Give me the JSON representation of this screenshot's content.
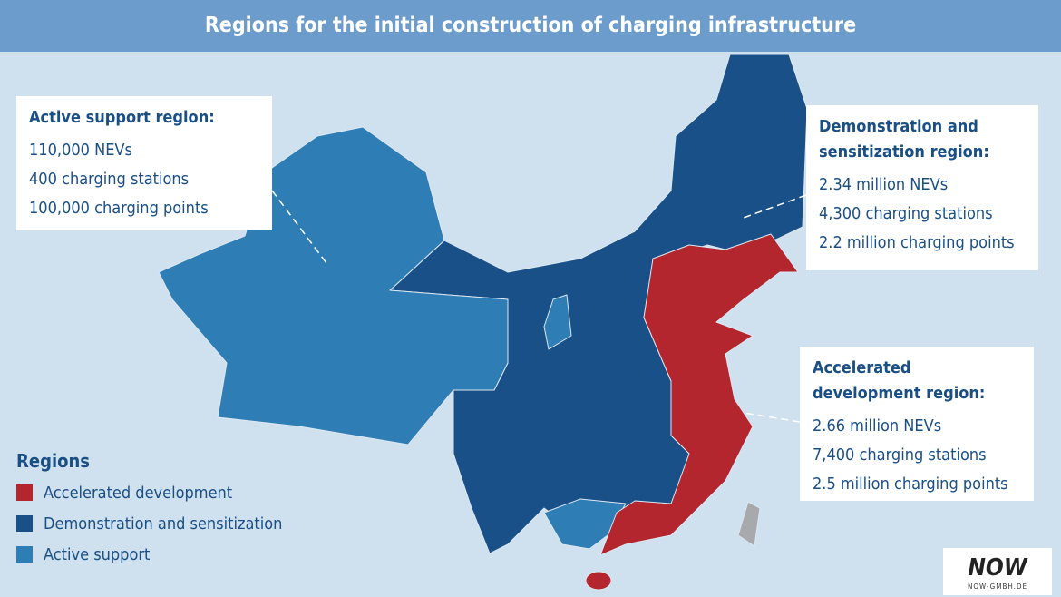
{
  "header": {
    "title": "Regions for the initial construction of charging infrastructure"
  },
  "callouts": [
    {
      "title": "Active support region:",
      "lines": [
        "110,000 NEVs",
        "400 charging stations",
        "100,000 charging points"
      ]
    },
    {
      "title": "Demonstration and sensitization region:",
      "lines": [
        "2.34 million NEVs",
        "4,300 charging stations",
        "2.2 million charging points"
      ]
    },
    {
      "title": "Accelerated development region:",
      "lines": [
        "2.66 million NEVs",
        "7,400 charging stations",
        "2.5 million charging points"
      ]
    }
  ],
  "legend": {
    "title": "Regions",
    "items": [
      {
        "label": "Accelerated development",
        "color": "#b3262e"
      },
      {
        "label": "Demonstration and sensitization",
        "color": "#1a5088"
      },
      {
        "label": "Active support",
        "color": "#2f7db5"
      }
    ]
  },
  "logo": {
    "text": "NOW",
    "url": "NOW-GMBH.DE"
  }
}
